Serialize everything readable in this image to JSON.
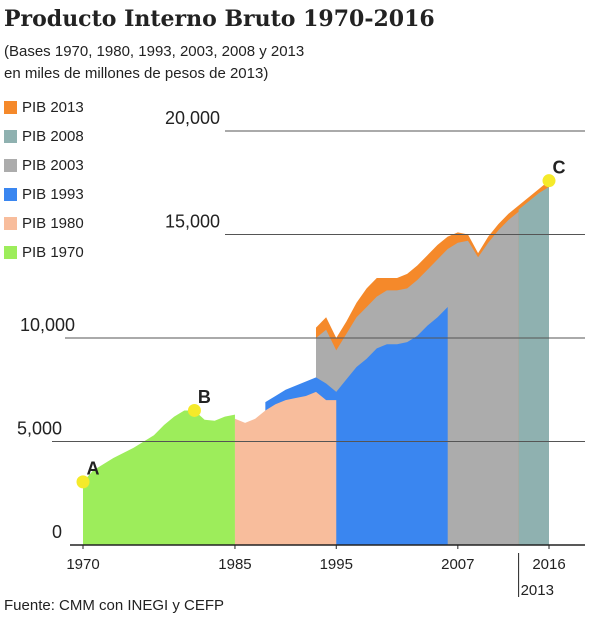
{
  "chart_data": {
    "type": "area",
    "title": "Producto Interno Bruto 1970-2016",
    "subtitle": [
      "(Bases 1970, 1980, 1993, 2003, 2008 y 2013",
      "en miles de millones de pesos de 2013)"
    ],
    "source": "Fuente: CMM con INEGI y CEFP",
    "xlim": [
      1970,
      2016
    ],
    "ylim": [
      0,
      20000
    ],
    "xticks": [
      1970,
      1985,
      1995,
      2007,
      2013,
      2016
    ],
    "yticks": [
      {
        "value": 0,
        "label": "0"
      },
      {
        "value": 5000,
        "label": "5,000"
      },
      {
        "value": 10000,
        "label": "10,000"
      },
      {
        "value": 15000,
        "label": "15,000"
      },
      {
        "value": 20000,
        "label": "20,000"
      }
    ],
    "grid": true,
    "legend": "top-left",
    "series": [
      {
        "name": "PIB 2013",
        "color": "#f5892a",
        "x": [
          1993,
          1994,
          1995,
          1996,
          1997,
          1998,
          1999,
          2000,
          2001,
          2002,
          2003,
          2004,
          2005,
          2006,
          2007,
          2008,
          2009,
          2010,
          2011,
          2012,
          2013,
          2014,
          2015,
          2016
        ],
        "values": [
          10500,
          11000,
          10000,
          10800,
          11700,
          12400,
          12900,
          12900,
          12900,
          13100,
          13500,
          14000,
          14500,
          14900,
          15100,
          15000,
          14100,
          14900,
          15500,
          16000,
          16400,
          16800,
          17200,
          17600
        ]
      },
      {
        "name": "PIB 2008",
        "color": "#8fb1b0",
        "x": [
          2013,
          2014,
          2015,
          2016
        ],
        "values": [
          16200,
          16600,
          17000,
          17300
        ]
      },
      {
        "name": "PIB 2003",
        "color": "#acacac",
        "x": [
          1993,
          1994,
          1995,
          1996,
          1997,
          1998,
          1999,
          2000,
          2001,
          2002,
          2003,
          2004,
          2005,
          2006,
          2007,
          2008,
          2009,
          2010,
          2011,
          2012,
          2013
        ],
        "values": [
          10000,
          10400,
          9400,
          10200,
          11000,
          11500,
          12000,
          12300,
          12300,
          12400,
          12800,
          13300,
          13800,
          14300,
          14600,
          14700,
          13900,
          14600,
          15200,
          15700,
          16100
        ]
      },
      {
        "name": "PIB 1993",
        "color": "#3a86f0",
        "x": [
          1988,
          1989,
          1990,
          1991,
          1992,
          1993,
          1994,
          1995,
          1996,
          1997,
          1998,
          1999,
          2000,
          2001,
          2002,
          2003,
          2004,
          2005,
          2006
        ],
        "values": [
          6900,
          7200,
          7500,
          7700,
          7900,
          8100,
          7800,
          7400,
          8000,
          8600,
          9000,
          9500,
          9700,
          9700,
          9800,
          10100,
          10600,
          11000,
          11500
        ]
      },
      {
        "name": "PIB 1980",
        "color": "#f8bd9c",
        "x": [
          1985,
          1986,
          1987,
          1988,
          1989,
          1990,
          1991,
          1992,
          1993,
          1994,
          1995
        ],
        "values": [
          6100,
          5900,
          6100,
          6500,
          6800,
          7000,
          7100,
          7200,
          7400,
          7000,
          7000
        ]
      },
      {
        "name": "PIB 1970",
        "color": "#9ded5b",
        "x": [
          1970,
          1971,
          1972,
          1973,
          1974,
          1975,
          1976,
          1977,
          1978,
          1979,
          1980,
          1981,
          1982,
          1983,
          1984,
          1985
        ],
        "values": [
          3050,
          3600,
          3900,
          4200,
          4450,
          4700,
          5000,
          5300,
          5800,
          6200,
          6500,
          6500,
          6050,
          6000,
          6200,
          6300
        ]
      }
    ],
    "annotations": [
      {
        "label": "A",
        "x": 1970,
        "y": 3050
      },
      {
        "label": "B",
        "x": 1981,
        "y": 6500
      },
      {
        "label": "C",
        "x": 2016,
        "y": 17600
      }
    ]
  }
}
